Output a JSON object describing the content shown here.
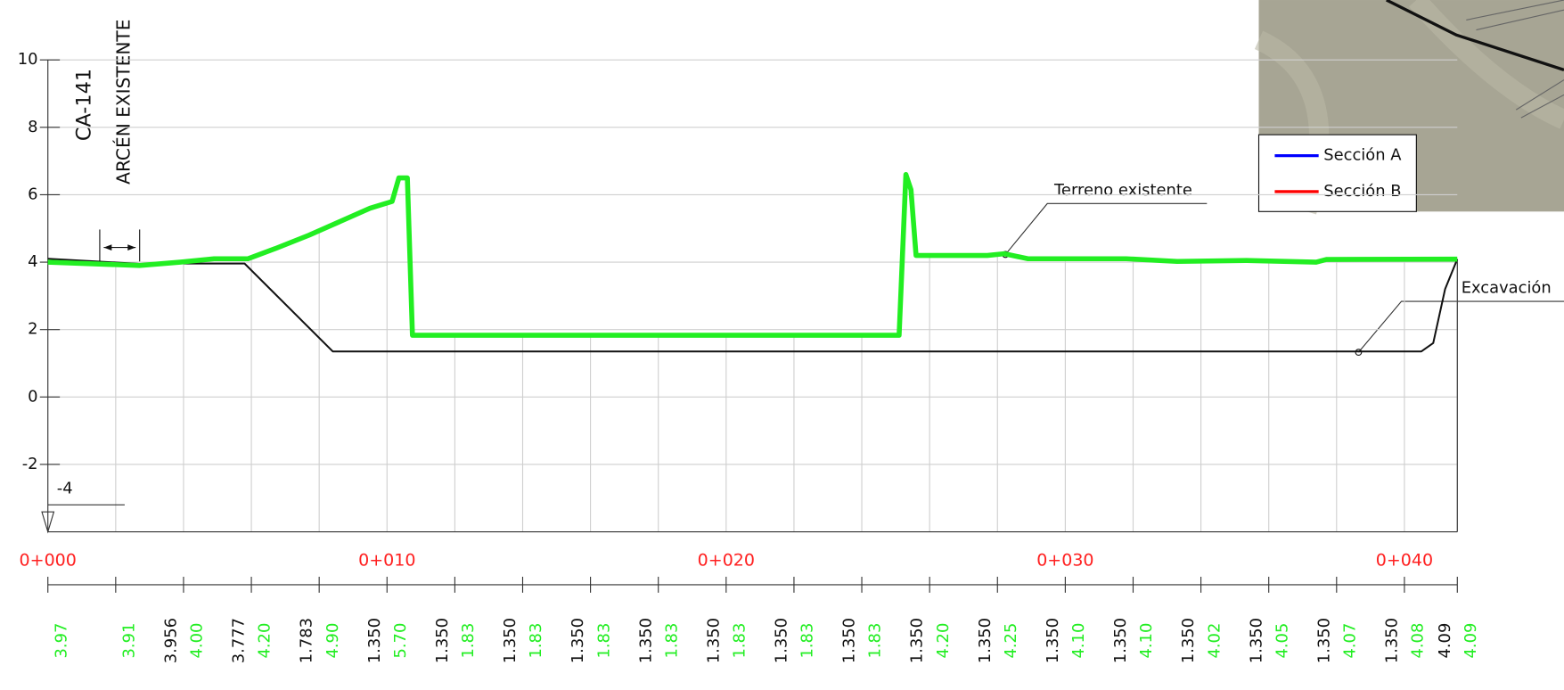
{
  "chart_data": {
    "type": "line",
    "labels": {
      "road": "CA-141",
      "shoulder": "ARCÉN EXISTENTE"
    },
    "xlim": [
      0,
      41.56
    ],
    "ylim": [
      -4,
      10
    ],
    "xticks": [
      {
        "value": 0,
        "label": "0+000"
      },
      {
        "value": 10,
        "label": "0+010"
      },
      {
        "value": 20,
        "label": "0+020"
      },
      {
        "value": 30,
        "label": "0+030"
      },
      {
        "value": 40,
        "label": "0+040"
      }
    ],
    "yticks": [
      -2,
      0,
      2,
      4,
      6,
      8,
      10
    ],
    "grid": true,
    "series": [
      {
        "name": "Terreno existente",
        "color": "#22ee22",
        "x": [
          0,
          2.7,
          3.9,
          4.9,
          5.9,
          6.7,
          7.7,
          8.6,
          9.5,
          10.15,
          10.35,
          10.6,
          10.75,
          25.1,
          25.3,
          25.45,
          25.6,
          27.7,
          28.2,
          28.9,
          31.8,
          33.3,
          35.35,
          37.4,
          37.7,
          41.56
        ],
        "values": [
          4.0,
          3.9,
          4.0,
          4.1,
          4.1,
          4.4,
          4.8,
          5.2,
          5.6,
          5.8,
          6.5,
          6.5,
          1.83,
          1.83,
          6.6,
          6.15,
          4.2,
          4.2,
          4.25,
          4.1,
          4.1,
          4.02,
          4.05,
          4.0,
          4.08,
          4.09
        ]
      },
      {
        "name": "Excavación",
        "color": "#111111",
        "x": [
          0,
          2.7,
          3.3,
          4,
          5.8,
          8.4,
          40.5,
          40.85,
          41.2,
          41.56
        ],
        "values": [
          4.1,
          3.95,
          null,
          3.96,
          3.96,
          1.35,
          1.35,
          1.6,
          3.2,
          4.09
        ]
      }
    ],
    "table": {
      "x": [
        0,
        2,
        4,
        6,
        8,
        10,
        12,
        14,
        16,
        18,
        20,
        22,
        24,
        26,
        28,
        30,
        32,
        34,
        36,
        38,
        40,
        41.56
      ],
      "excavation": [
        null,
        null,
        "3.956",
        "3.777",
        "1.783",
        "1.350",
        "1.350",
        "1.350",
        "1.350",
        "1.350",
        "1.350",
        "1.350",
        "1.350",
        "1.350",
        "1.350",
        "1.350",
        "1.350",
        "1.350",
        "1.350",
        "1.350",
        "1.350",
        "4.09"
      ],
      "terrain": [
        "3.97",
        "3.91",
        "4.00",
        "4.20",
        "4.90",
        "5.70",
        "1.83",
        "1.83",
        "1.83",
        "1.83",
        "1.83",
        "1.83",
        "1.83",
        "4.20",
        "4.25",
        "4.10",
        "4.10",
        "4.02",
        "4.05",
        "4.07",
        "4.08",
        "4.09"
      ]
    },
    "legend": {
      "position": "top-right",
      "items": [
        {
          "name": "Sección A",
          "color": "#0000ff"
        },
        {
          "name": "Sección B",
          "color": "#ff0000"
        }
      ]
    }
  }
}
